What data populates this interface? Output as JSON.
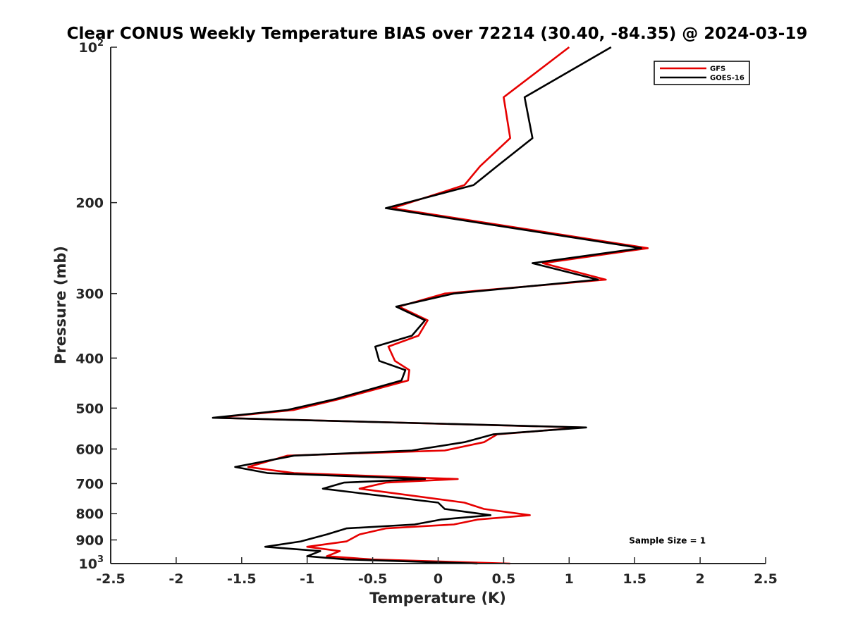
{
  "chart_data": {
    "type": "line",
    "title": "Clear CONUS Weekly Temperature BIAS over 72214 (30.40, -84.35) @ 2024-03-19",
    "xlabel": "Temperature (K)",
    "ylabel": "Pressure (mb)",
    "xlim": [
      -2.5,
      2.5
    ],
    "ylim": [
      100,
      1000
    ],
    "y_scale": "log",
    "y_reversed": true,
    "x_ticks": [
      -2.5,
      -2,
      -1.5,
      -1,
      -0.5,
      0,
      0.5,
      1,
      1.5,
      2,
      2.5
    ],
    "x_tick_labels": [
      "-2.5",
      "-2",
      "-1.5",
      "-1",
      "-0.5",
      "0",
      "0.5",
      "1",
      "1.5",
      "2",
      "2.5"
    ],
    "y_ticks": [
      100,
      200,
      300,
      400,
      500,
      600,
      700,
      800,
      900,
      1000
    ],
    "y_tick_labels": [
      {
        "base": "10",
        "exp": "2"
      },
      {
        "base": "200",
        "exp": ""
      },
      {
        "base": "300",
        "exp": ""
      },
      {
        "base": "400",
        "exp": ""
      },
      {
        "base": "500",
        "exp": ""
      },
      {
        "base": "600",
        "exp": ""
      },
      {
        "base": "700",
        "exp": ""
      },
      {
        "base": "800",
        "exp": ""
      },
      {
        "base": "900",
        "exp": ""
      },
      {
        "base": "10",
        "exp": "3"
      }
    ],
    "grid": false,
    "legend_position": "top-right",
    "series": [
      {
        "name": "GFS",
        "color": "#e60000",
        "points": [
          [
            1.0,
            100
          ],
          [
            0.5,
            125
          ],
          [
            0.55,
            150
          ],
          [
            0.32,
            170
          ],
          [
            0.2,
            185
          ],
          [
            -0.35,
            205
          ],
          [
            1.6,
            245
          ],
          [
            0.8,
            262
          ],
          [
            1.28,
            282
          ],
          [
            0.05,
            300
          ],
          [
            -0.3,
            318
          ],
          [
            -0.08,
            338
          ],
          [
            -0.15,
            362
          ],
          [
            -0.38,
            380
          ],
          [
            -0.33,
            405
          ],
          [
            -0.22,
            422
          ],
          [
            -0.23,
            442
          ],
          [
            -0.75,
            480
          ],
          [
            -1.1,
            504
          ],
          [
            -1.7,
            522
          ],
          [
            1.1,
            545
          ],
          [
            0.45,
            562
          ],
          [
            0.35,
            582
          ],
          [
            0.05,
            604
          ],
          [
            -1.15,
            618
          ],
          [
            -1.45,
            650
          ],
          [
            -1.1,
            668
          ],
          [
            0.15,
            686
          ],
          [
            -0.4,
            697
          ],
          [
            -0.6,
            716
          ],
          [
            0.2,
            762
          ],
          [
            0.35,
            784
          ],
          [
            0.7,
            806
          ],
          [
            0.3,
            822
          ],
          [
            0.12,
            840
          ],
          [
            -0.4,
            855
          ],
          [
            -0.6,
            878
          ],
          [
            -0.7,
            906
          ],
          [
            -1.0,
            928
          ],
          [
            -0.75,
            946
          ],
          [
            -0.85,
            968
          ],
          [
            -0.5,
            982
          ],
          [
            0.55,
            1000
          ]
        ]
      },
      {
        "name": "GOES-16",
        "color": "#000000",
        "points": [
          [
            1.32,
            100
          ],
          [
            0.66,
            125
          ],
          [
            0.72,
            150
          ],
          [
            0.45,
            170
          ],
          [
            0.27,
            185
          ],
          [
            -0.4,
            205
          ],
          [
            1.55,
            245
          ],
          [
            0.72,
            262
          ],
          [
            1.22,
            282
          ],
          [
            0.12,
            300
          ],
          [
            -0.32,
            318
          ],
          [
            -0.1,
            338
          ],
          [
            -0.2,
            362
          ],
          [
            -0.48,
            380
          ],
          [
            -0.45,
            405
          ],
          [
            -0.25,
            422
          ],
          [
            -0.28,
            442
          ],
          [
            -0.78,
            480
          ],
          [
            -1.15,
            504
          ],
          [
            -1.72,
            522
          ],
          [
            1.13,
            545
          ],
          [
            0.42,
            562
          ],
          [
            0.2,
            582
          ],
          [
            -0.2,
            604
          ],
          [
            -1.1,
            618
          ],
          [
            -1.55,
            650
          ],
          [
            -1.3,
            668
          ],
          [
            -0.1,
            686
          ],
          [
            -0.72,
            697
          ],
          [
            -0.88,
            716
          ],
          [
            0.0,
            762
          ],
          [
            0.05,
            784
          ],
          [
            0.4,
            806
          ],
          [
            0.02,
            822
          ],
          [
            -0.18,
            840
          ],
          [
            -0.7,
            855
          ],
          [
            -0.85,
            878
          ],
          [
            -1.05,
            906
          ],
          [
            -1.32,
            928
          ],
          [
            -0.9,
            946
          ],
          [
            -1.0,
            968
          ],
          [
            -0.7,
            982
          ],
          [
            0.3,
            1000
          ]
        ]
      }
    ],
    "annotations": [
      {
        "text": "Sample Size = 1",
        "x": 1.75,
        "y": 900
      }
    ]
  }
}
